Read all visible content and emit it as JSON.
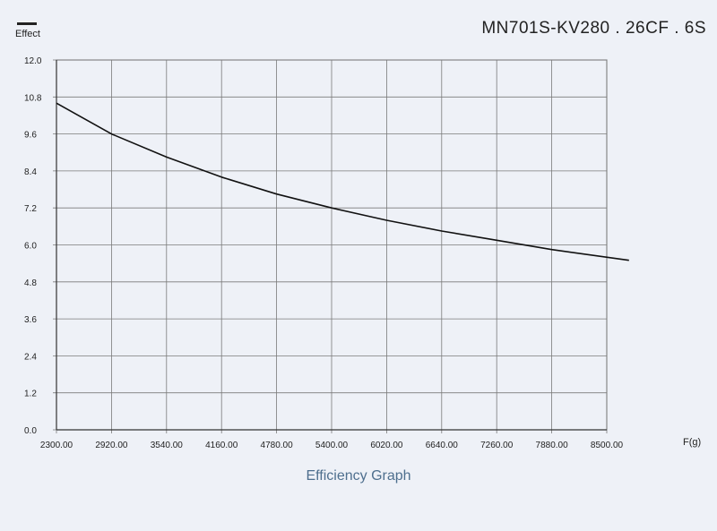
{
  "chart_data": {
    "type": "line",
    "title": "MN701S-KV280 . 26CF . 6S",
    "caption": "Efficiency Graph",
    "legend": [
      "Effect"
    ],
    "xlabel": "F(g)",
    "ylabel": "",
    "xlim": [
      2300,
      8500
    ],
    "ylim": [
      0,
      12
    ],
    "x_ticks": [
      "2300.00",
      "2920.00",
      "3540.00",
      "4160.00",
      "4780.00",
      "5400.00",
      "6020.00",
      "6640.00",
      "7260.00",
      "7880.00",
      "8500.00"
    ],
    "y_ticks": [
      "0.0",
      "1.2",
      "2.4",
      "3.6",
      "4.8",
      "6.0",
      "7.2",
      "8.4",
      "9.6",
      "10.8",
      "12.0"
    ],
    "grid": true,
    "series": [
      {
        "name": "Effect",
        "color": "#111111",
        "x": [
          2300,
          2920,
          3540,
          4160,
          4780,
          5400,
          6020,
          6640,
          7260,
          7880,
          8750
        ],
        "y": [
          10.6,
          9.6,
          8.85,
          8.2,
          7.65,
          7.2,
          6.8,
          6.45,
          6.15,
          5.85,
          5.5
        ]
      }
    ]
  }
}
